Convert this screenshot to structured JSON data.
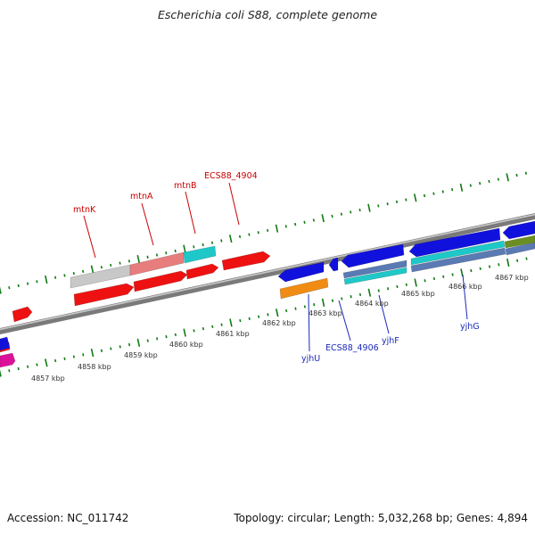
{
  "title": "Escherichia coli S88, complete genome",
  "footer": {
    "accession": "Accession: NC_011742",
    "topology": "Topology: circular; Length: 5,032,268 bp; Genes: 4,894"
  },
  "colors": {
    "backbone": "#808080",
    "tick_green": "#117a11",
    "label_red": "#cc0000",
    "label_blue": "#1a2ab8",
    "kbp_label": "#333333"
  },
  "ruler_labels": [
    "4857 kbp",
    "4858 kbp",
    "4859 kbp",
    "4860 kbp",
    "4861 kbp",
    "4862 kbp",
    "4863 kbp",
    "4864 kbp",
    "4865 kbp",
    "4866 kbp",
    "4867 kbp"
  ],
  "genes_forward": [
    {
      "label": "mtnK",
      "color": "#c8c8c8"
    },
    {
      "label": "mtnA",
      "color": "#e87d7d"
    },
    {
      "label": "mtnB",
      "color": "#1ec8c8"
    },
    {
      "label": "ECS88_4904",
      "color": "#ee1111"
    },
    {
      "label": "",
      "color": "#ee1111"
    },
    {
      "label": "",
      "color": "#ee1111"
    },
    {
      "label": "",
      "color": "#ee1111"
    },
    {
      "label": "",
      "color": "#ee1111"
    },
    {
      "label": "",
      "color": "#ee1111"
    }
  ],
  "genes_reverse": [
    {
      "label": "yjhU",
      "color": "#1111dd"
    },
    {
      "label": "",
      "color": "#f08c14"
    },
    {
      "label": "ECS88_4906",
      "color": "#1111dd"
    },
    {
      "label": "yjhF",
      "color": "#5a7ab4"
    },
    {
      "label": "",
      "color": "#1ec8c8"
    },
    {
      "label": "yjhG",
      "color": "#1111dd"
    },
    {
      "label": "",
      "color": "#5a7ab4"
    },
    {
      "label": "",
      "color": "#1ec8c8"
    },
    {
      "label": "",
      "color": "#6b8e23"
    },
    {
      "label": "",
      "color": "#1111dd"
    },
    {
      "label": "",
      "color": "#1111dd"
    },
    {
      "label": "",
      "color": "#dd1199"
    }
  ]
}
